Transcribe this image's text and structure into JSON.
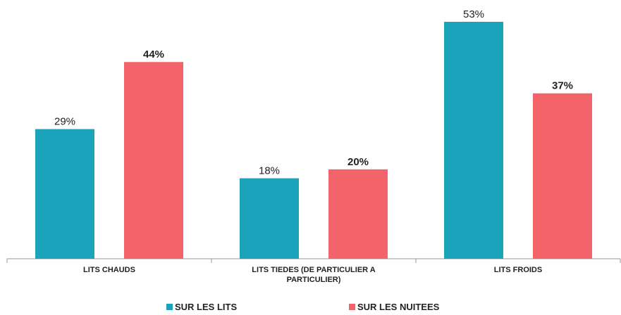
{
  "chart_data": {
    "type": "bar",
    "categories": [
      "LITS CHAUDS",
      "LITS TIEDES (DE PARTICULIER A PARTICULIER)",
      "LITS FROIDS"
    ],
    "series": [
      {
        "name": "SUR LES LITS",
        "color": "#1ba3bb",
        "values": [
          29,
          18,
          53
        ],
        "value_labels": [
          "29%",
          "18%",
          "53%"
        ]
      },
      {
        "name": "SUR LES NUITEES",
        "color": "#f26469",
        "values": [
          44,
          20,
          37
        ],
        "value_labels": [
          "44%",
          "20%",
          "37%"
        ]
      }
    ],
    "legend": "bottom"
  }
}
